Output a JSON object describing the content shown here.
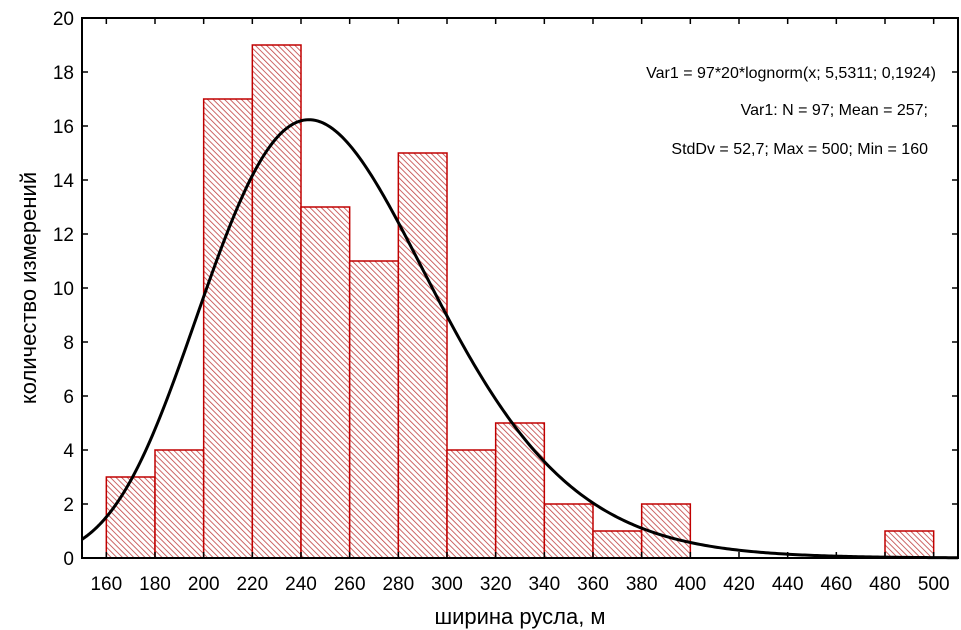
{
  "chart_data": {
    "type": "bar",
    "xlabel": "ширина русла, м",
    "ylabel": "количество измерений",
    "xlim": [
      150,
      510
    ],
    "ylim": [
      0,
      20
    ],
    "xticks": [
      "160",
      "180",
      "200",
      "220",
      "240",
      "260",
      "280",
      "300",
      "320",
      "340",
      "360",
      "380",
      "400",
      "420",
      "440",
      "460",
      "480",
      "500"
    ],
    "yticks": [
      "0",
      "2",
      "4",
      "6",
      "8",
      "10",
      "12",
      "14",
      "16",
      "18",
      "20"
    ],
    "bin_width": 20,
    "bins": [
      {
        "start": 160,
        "end": 180,
        "count": 3
      },
      {
        "start": 180,
        "end": 200,
        "count": 4
      },
      {
        "start": 200,
        "end": 220,
        "count": 17
      },
      {
        "start": 220,
        "end": 240,
        "count": 19
      },
      {
        "start": 240,
        "end": 260,
        "count": 13
      },
      {
        "start": 260,
        "end": 280,
        "count": 11
      },
      {
        "start": 280,
        "end": 300,
        "count": 15
      },
      {
        "start": 300,
        "end": 320,
        "count": 4
      },
      {
        "start": 320,
        "end": 340,
        "count": 5
      },
      {
        "start": 340,
        "end": 360,
        "count": 2
      },
      {
        "start": 360,
        "end": 380,
        "count": 1
      },
      {
        "start": 380,
        "end": 400,
        "count": 2
      },
      {
        "start": 400,
        "end": 420,
        "count": 0
      },
      {
        "start": 420,
        "end": 440,
        "count": 0
      },
      {
        "start": 440,
        "end": 460,
        "count": 0
      },
      {
        "start": 460,
        "end": 480,
        "count": 0
      },
      {
        "start": 480,
        "end": 500,
        "count": 1
      }
    ],
    "fit": {
      "n": 97,
      "bin_width": 20,
      "mu": 5.5311,
      "sigma": 0.1924
    },
    "annotations": [
      "Var1 = 97*20*lognorm(x; 5,5311; 0,1924)",
      "Var1:   N = 97; Mean = 257;",
      "StdDv = 52,7; Max = 500; Min = 160"
    ],
    "colors": {
      "bar_edge": "#c00000",
      "hatch": "#c04040",
      "curve": "#000000",
      "axis": "#000000"
    },
    "grid": false,
    "legend": "none"
  }
}
